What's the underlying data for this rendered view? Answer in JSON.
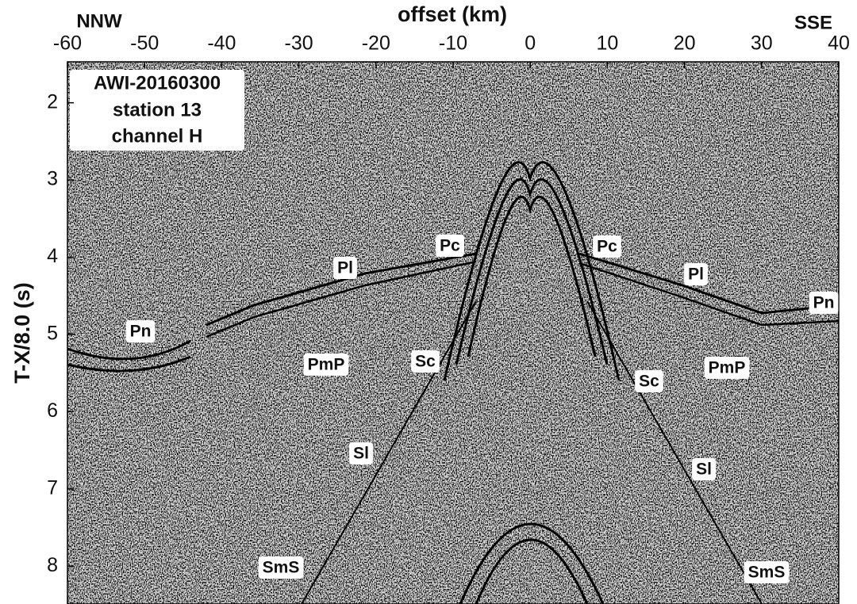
{
  "chart_data": {
    "type": "seismic-section",
    "xlabel": "offset (km)",
    "ylabel": "T-X/8.0 (s)",
    "left_direction": "NNW",
    "right_direction": "SSE",
    "info_box": [
      "AWI-20160300",
      "station 13",
      "channel H"
    ],
    "xlim": [
      -60,
      40
    ],
    "xticks": [
      -60,
      -50,
      -40,
      -30,
      -20,
      -10,
      0,
      10,
      20,
      30,
      40
    ],
    "ylim": [
      1.47,
      8.49
    ],
    "yticks": [
      2,
      3,
      4,
      5,
      6,
      7,
      8
    ],
    "y_inverted": true,
    "annotations": [
      "Pl",
      "Pc",
      "Pn",
      "PmP",
      "Sc",
      "Sl",
      "SmS",
      "Pc",
      "Pl",
      "Pn",
      "Sc",
      "PmP",
      "Sl",
      "SmS"
    ]
  }
}
